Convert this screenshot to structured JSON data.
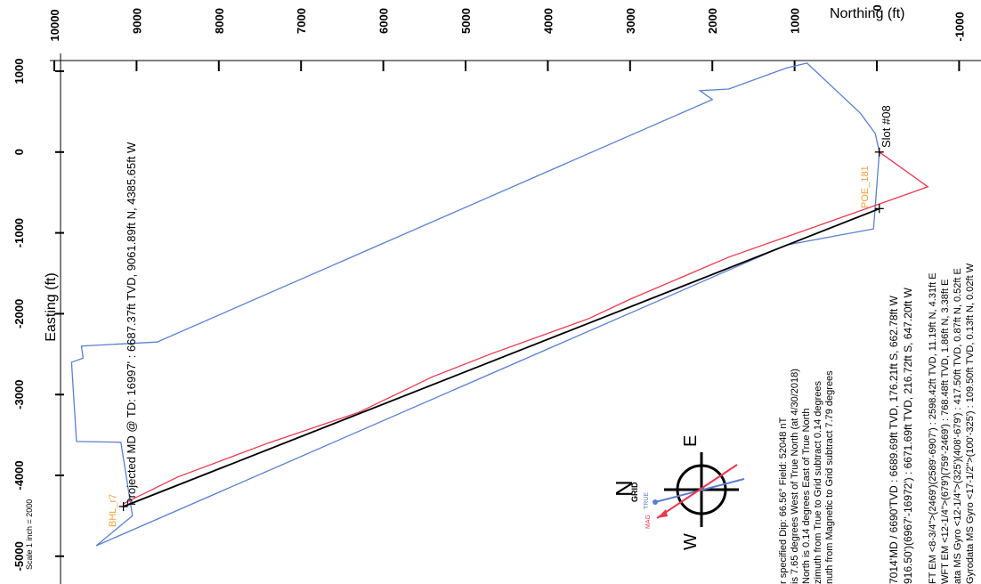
{
  "chart_data": {
    "type": "line",
    "xlabel": "Northing (ft)",
    "ylabel": "Easting (ft)",
    "scale_note": "Scale 1 inch = 2000",
    "northing_ticks": [
      "10000",
      "9000",
      "8000",
      "7000",
      "6000",
      "5000",
      "4000",
      "3000",
      "2000",
      "1000",
      "0",
      "-1000"
    ],
    "easting_ticks": [
      "1000",
      "0",
      "-1000",
      "-2000",
      "-3000",
      "-4000",
      "-5000"
    ],
    "xlim": [
      10000,
      -1000
    ],
    "ylim": [
      1000,
      -5000
    ],
    "grid": false,
    "series": [
      {
        "key": "plan",
        "color": "#000000",
        "points": [
          [
            -30,
            -700
          ],
          [
            9160,
            -4385
          ]
        ]
      },
      {
        "key": "actual",
        "color": "#e8384f",
        "points": [
          [
            -30,
            0
          ],
          [
            -620,
            -430
          ],
          [
            600,
            -870
          ],
          [
            1800,
            -1300
          ],
          [
            3000,
            -1820
          ],
          [
            3500,
            -2060
          ],
          [
            4700,
            -2500
          ],
          [
            5400,
            -2780
          ],
          [
            6300,
            -3220
          ],
          [
            7400,
            -3600
          ],
          [
            8500,
            -4020
          ],
          [
            9160,
            -4350
          ]
        ]
      },
      {
        "key": "boundary",
        "color": "#5b7fd0",
        "points": [
          [
            -30,
            0
          ],
          [
            20,
            230
          ],
          [
            200,
            480
          ],
          [
            850,
            1100
          ],
          [
            1100,
            1040
          ],
          [
            1800,
            780
          ],
          [
            2150,
            760
          ],
          [
            2000,
            650
          ],
          [
            8750,
            -2350
          ],
          [
            9670,
            -2400
          ],
          [
            9650,
            -2550
          ],
          [
            9790,
            -2600
          ],
          [
            9730,
            -3580
          ],
          [
            9190,
            -3590
          ],
          [
            9050,
            -4500
          ],
          [
            9490,
            -4870
          ],
          [
            1100,
            -1150
          ],
          [
            40,
            -950
          ],
          [
            -30,
            0
          ]
        ]
      }
    ],
    "annotations": {
      "slot": "Slot #08",
      "poe": "POE_181",
      "bhl": "BHL_r7",
      "projected": "Projected MD @ TD: 16997' : 6687.37ft TVD, 9061.89ft N, 4385.65ft W",
      "td_lines": [
        "7014'MD / 6690'TVD : 6689.69ft TVD, 176.21ft S, 662.78ft W",
        "916.50')(6967'-16972') : 6671.69ft TVD, 216.72ft S, 647.20ft W"
      ],
      "magnetic_lines": [
        "r specified Dip: 66.56°  Field: 52048 nT",
        "is 7.65 degrees West of True North (at 4/30/2018)",
        "North is 0.14 degrees East of True North",
        "zimuth from True to Grid subtract 0.14 degrees",
        "nuth from Magnetic to Grid subtract 7.79 degrees"
      ],
      "survey_lines": [
        "FT EM <8-3/4\">(2469')(2589'-6907') : 2598.42ft TVD, 11.19ft N, 4.31ft E",
        "WFT EM <12-1/4\">(679')(759'-2469') : 768.48ft TVD, 1.86ft N, 3.38ft E",
        "ata MS Gyro <12-1/4\">(325')(408'-679') : 417.50ft TVD, 0.87ft N, 0.52ft E",
        "Gyrodata MS Gyro <17-1/2\">(100'-325') : 109.50ft TVD, 0.13ft N, 0.02ft W"
      ]
    },
    "compass": {
      "n": "N",
      "grid": "GRID",
      "e": "E",
      "w": "W",
      "true_label": "TRUE",
      "mag_label": "MAG"
    }
  }
}
